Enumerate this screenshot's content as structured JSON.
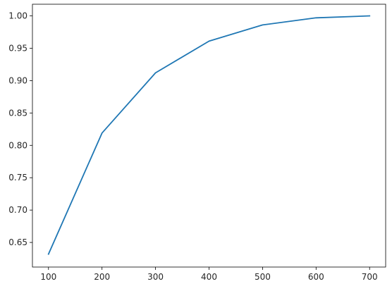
{
  "chart_data": {
    "type": "line",
    "title": "",
    "xlabel": "",
    "ylabel": "",
    "xlim": [
      70,
      730
    ],
    "ylim": [
      0.612,
      1.018
    ],
    "xticks": [
      100,
      200,
      300,
      400,
      500,
      600,
      700
    ],
    "xtick_labels": [
      "100",
      "200",
      "300",
      "400",
      "500",
      "600",
      "700"
    ],
    "yticks": [
      0.65,
      0.7,
      0.75,
      0.8,
      0.85,
      0.9,
      0.95,
      1.0
    ],
    "ytick_labels": [
      "0.65",
      "0.70",
      "0.75",
      "0.80",
      "0.85",
      "0.90",
      "0.95",
      "1.00"
    ],
    "grid": false,
    "legend": "none",
    "series": [
      {
        "color": "#1f77b4",
        "x": [
          100,
          200,
          300,
          400,
          500,
          600,
          700
        ],
        "y": [
          0.632,
          0.819,
          0.912,
          0.961,
          0.986,
          0.997,
          1.0
        ]
      }
    ]
  }
}
